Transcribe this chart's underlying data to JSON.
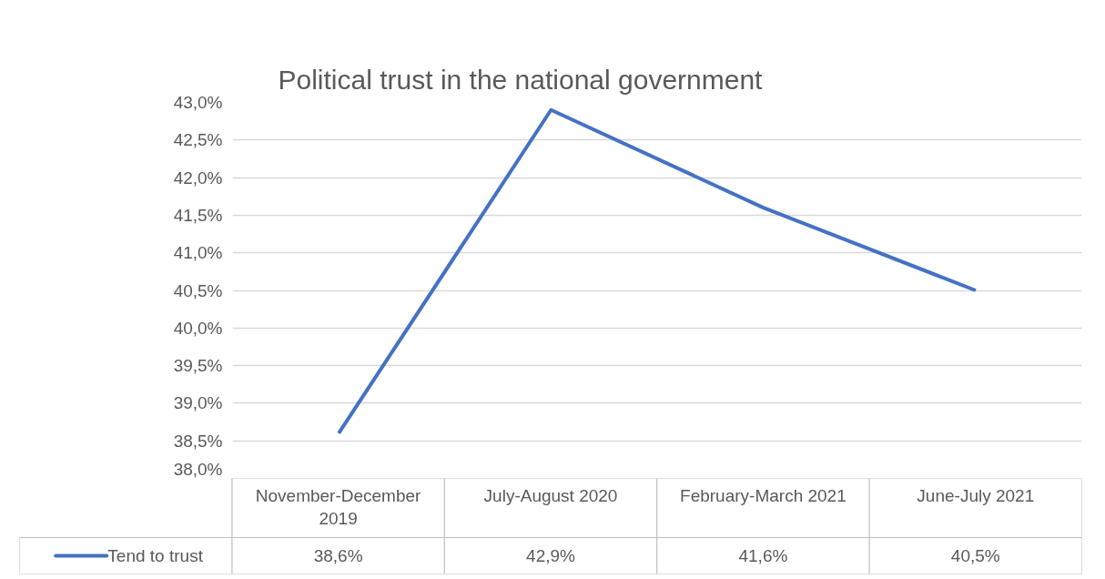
{
  "chart_data": {
    "type": "line",
    "title": "Political trust in the national government",
    "categories": [
      "November-December 2019",
      "July-August 2020",
      "February-March 2021",
      "June-July 2021"
    ],
    "series": [
      {
        "name": "Tend to trust",
        "color": "#4472c4",
        "values": [
          38.6,
          42.9,
          41.6,
          40.5
        ],
        "value_labels": [
          "38,6%",
          "42,9%",
          "41,6%",
          "40,5%"
        ]
      }
    ],
    "ylim": [
      38,
      43
    ],
    "yticks": [
      {
        "value": 38,
        "label": "38,0%"
      },
      {
        "value": 38.5,
        "label": "38,5%"
      },
      {
        "value": 39,
        "label": "39,0%"
      },
      {
        "value": 39.5,
        "label": "39,5%"
      },
      {
        "value": 40,
        "label": "40,0%"
      },
      {
        "value": 40.5,
        "label": "40,5%"
      },
      {
        "value": 41,
        "label": "41,0%"
      },
      {
        "value": 41.5,
        "label": "41,5%"
      },
      {
        "value": 42,
        "label": "42,0%"
      },
      {
        "value": 42.5,
        "label": "42,5%"
      },
      {
        "value": 43,
        "label": "43,0%"
      }
    ],
    "grid": "y",
    "legend": "bottom left",
    "line_style": "solid"
  }
}
